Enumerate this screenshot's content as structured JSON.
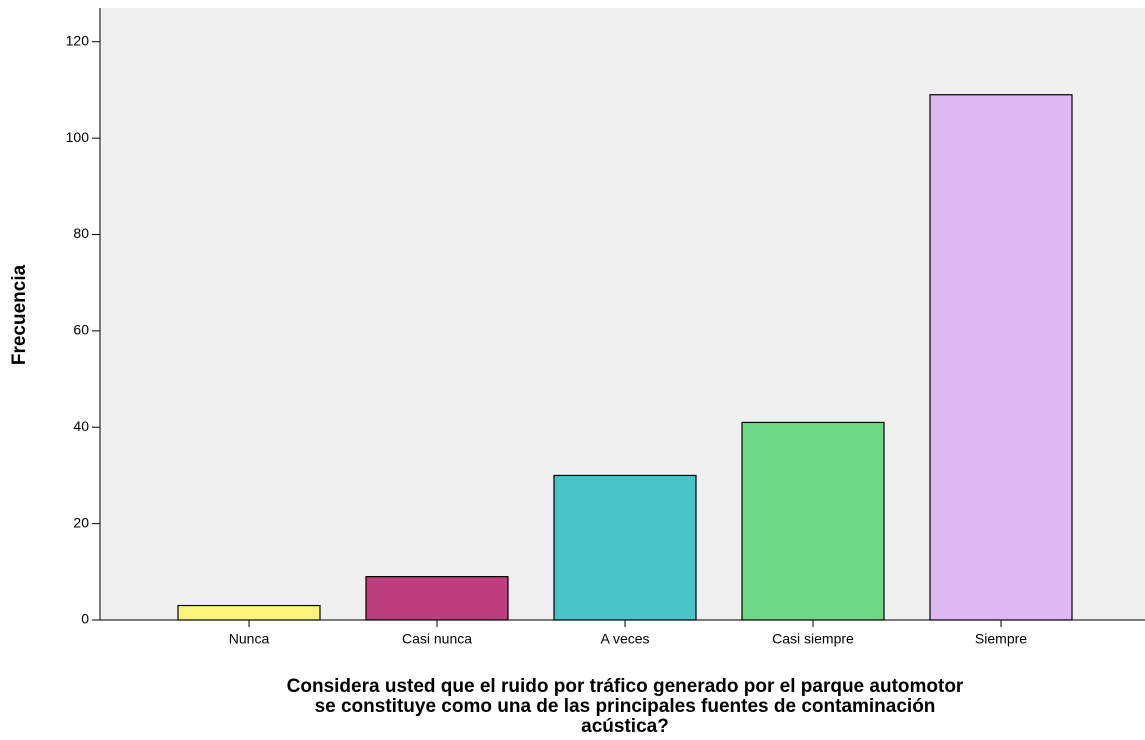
{
  "chart_data": {
    "type": "bar",
    "ylabel": "Frecuencia",
    "xlabel": [
      "Considera usted que el ruido por tráfico generado por el parque automotor",
      "se constituye como una de las principales fuentes de contaminación",
      "acústica?"
    ],
    "categories": [
      "Nunca",
      "Casi nunca",
      "A veces",
      "Casi siempre",
      "Siempre"
    ],
    "values": [
      3,
      9,
      30,
      41,
      109
    ],
    "colors": [
      "#fbf47a",
      "#bd3f7d",
      "#48c3c8",
      "#6fd884",
      "#ddb8f2"
    ],
    "ylim": [
      0,
      127
    ],
    "yticks": [
      0,
      20,
      40,
      60,
      80,
      100,
      120
    ]
  }
}
